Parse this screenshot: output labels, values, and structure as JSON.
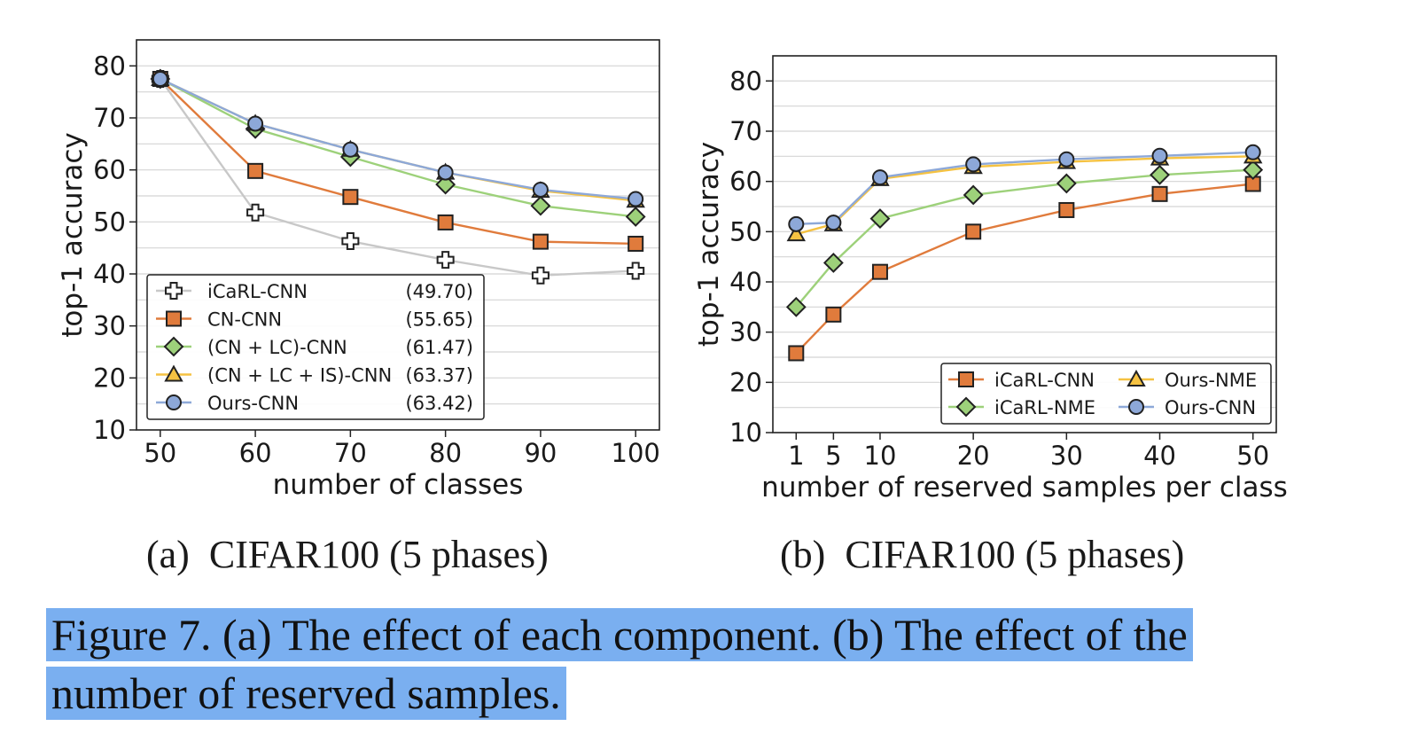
{
  "colors": {
    "icarl_cnn_a": "#c8c8c8",
    "cn_cnn": "#e07b3c",
    "cn_lc_cnn": "#9dd17a",
    "cn_lc_is_cnn": "#f5c242",
    "ours_cnn": "#8da8d8",
    "highlight": "#7aaff0"
  },
  "chart_data": [
    {
      "type": "line",
      "xlabel": "number of classes",
      "ylabel": "top-1 accuracy",
      "x": [
        50,
        60,
        70,
        80,
        90,
        100
      ],
      "xlim": [
        47.5,
        102.5
      ],
      "ylim": [
        10,
        85
      ],
      "yticks": [
        10,
        20,
        30,
        40,
        50,
        60,
        70,
        80
      ],
      "xticks": [
        50,
        60,
        70,
        80,
        90,
        100
      ],
      "grid": "y-minor",
      "legend_position": "bottom-left",
      "series": [
        {
          "name": "iCaRL-CNN",
          "score": "(49.70)",
          "marker": "plus",
          "color": "#c8c8c8",
          "values": [
            77.5,
            51.8,
            46.3,
            42.7,
            39.7,
            40.6
          ]
        },
        {
          "name": "CN-CNN",
          "score": "(55.65)",
          "marker": "square",
          "color": "#e07b3c",
          "values": [
            77.5,
            59.8,
            54.8,
            49.9,
            46.2,
            45.8
          ]
        },
        {
          "name": "(CN + LC)-CNN",
          "score": "(61.47)",
          "marker": "diamond",
          "color": "#9dd17a",
          "values": [
            77.5,
            67.9,
            62.5,
            57.2,
            53.1,
            51.0
          ]
        },
        {
          "name": "(CN + LC + IS)-CNN",
          "score": "(63.37)",
          "marker": "triangle",
          "color": "#f5c242",
          "values": [
            77.5,
            68.9,
            63.9,
            59.5,
            56.0,
            54.1
          ]
        },
        {
          "name": "Ours-CNN",
          "score": "(63.42)",
          "marker": "circle",
          "color": "#8da8d8",
          "values": [
            77.5,
            68.9,
            63.9,
            59.5,
            56.2,
            54.4
          ]
        }
      ]
    },
    {
      "type": "line",
      "xlabel": "number of reserved samples per class",
      "ylabel": "top-1 accuracy",
      "x": [
        1,
        5,
        10,
        20,
        30,
        40,
        50
      ],
      "xlim": [
        -1.5,
        52.5
      ],
      "ylim": [
        10,
        85
      ],
      "yticks": [
        10,
        20,
        30,
        40,
        50,
        60,
        70,
        80
      ],
      "xticks": [
        1,
        5,
        10,
        20,
        30,
        40,
        50
      ],
      "grid": "y-minor",
      "legend_position": "bottom-right",
      "series": [
        {
          "name": "iCaRL-CNN",
          "marker": "square",
          "color": "#e07b3c",
          "values": [
            25.8,
            33.5,
            42.0,
            50.0,
            54.3,
            57.5,
            59.5
          ]
        },
        {
          "name": "iCaRL-NME",
          "marker": "diamond",
          "color": "#9dd17a",
          "values": [
            35.0,
            43.8,
            52.6,
            57.3,
            59.6,
            61.3,
            62.3
          ]
        },
        {
          "name": "Ours-NME",
          "marker": "triangle",
          "color": "#f5c242",
          "values": [
            49.5,
            51.5,
            60.5,
            62.9,
            63.9,
            64.6,
            65.0
          ]
        },
        {
          "name": "Ours-CNN",
          "marker": "circle",
          "color": "#8da8d8",
          "values": [
            51.5,
            51.8,
            60.8,
            63.4,
            64.4,
            65.1,
            65.8
          ]
        }
      ]
    }
  ],
  "subcaptions": {
    "a_label": "(a)",
    "a_text": "CIFAR100 (5 phases)",
    "b_label": "(b)",
    "b_text": "CIFAR100 (5 phases)"
  },
  "caption": {
    "line1": "Figure 7. (a) The effect of each component.  (b) The effect of the",
    "line2": "number of reserved samples."
  }
}
